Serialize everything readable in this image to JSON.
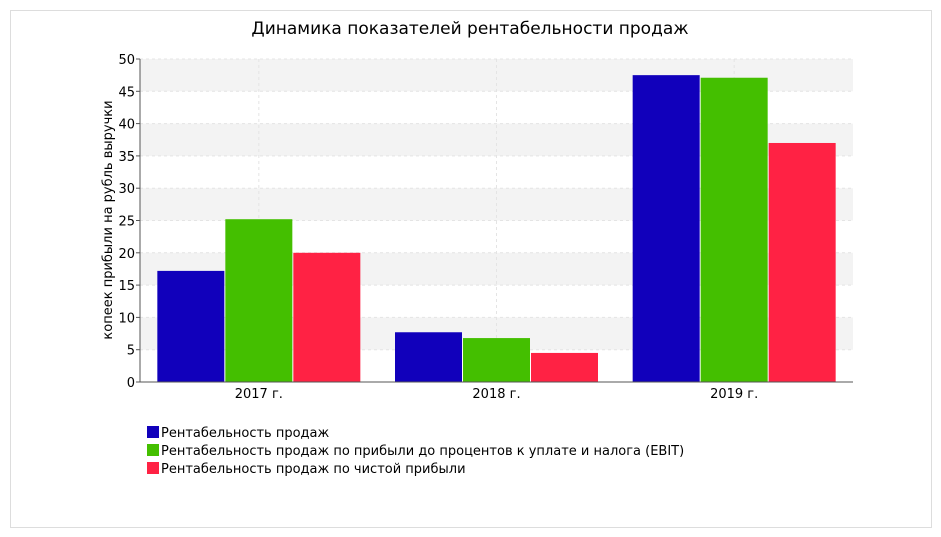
{
  "chart_data": {
    "type": "bar",
    "title": "Динамика показателей рентабельности продаж",
    "ylabel": "копеек прибыли на рубль выручки",
    "xlabel": "",
    "ylim": [
      0,
      50
    ],
    "yticks": [
      0,
      5,
      10,
      15,
      20,
      25,
      30,
      35,
      40,
      45,
      50
    ],
    "categories": [
      "2017 г.",
      "2018 г.",
      "2019 г."
    ],
    "series": [
      {
        "name": "Рентабельность продаж",
        "color": "#1100bb",
        "values": [
          17.2,
          7.7,
          47.5
        ]
      },
      {
        "name": "Рентабельность продаж по прибыли до процентов к уплате и налога (EBIT)",
        "color": "#44bf00",
        "values": [
          25.2,
          6.8,
          47.1
        ]
      },
      {
        "name": "Рентабельность продаж по чистой прибыли",
        "color": "#ff2244",
        "values": [
          20.0,
          4.5,
          37.0
        ]
      }
    ],
    "grid": true,
    "legend": "bottom-left"
  }
}
